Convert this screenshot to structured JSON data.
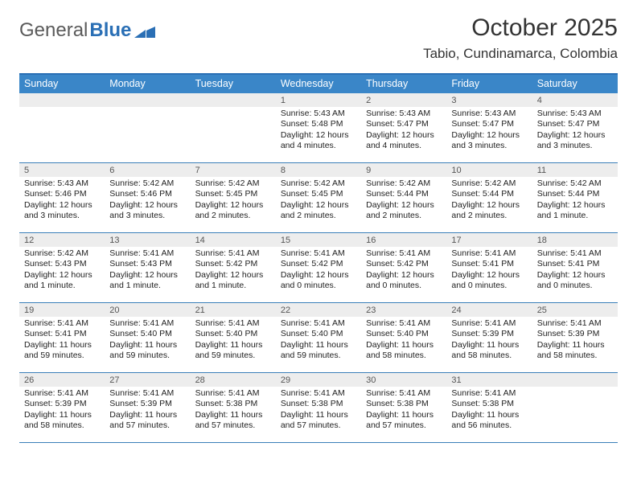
{
  "logo": {
    "word1": "General",
    "word2": "Blue"
  },
  "title": "October 2025",
  "location": "Tabio, Cundinamarca, Colombia",
  "colors": {
    "header_bg": "#3a86c8",
    "header_border": "#2a6fb5",
    "row_divider": "#3a7fb8",
    "daynum_bg": "#ededed",
    "text": "#222222",
    "logo_gray": "#5a5a5a",
    "logo_blue": "#2a6fb5"
  },
  "fonts": {
    "family": "Arial",
    "title_size_pt": 22,
    "location_size_pt": 13,
    "header_size_pt": 9.5,
    "body_size_pt": 8
  },
  "day_headers": [
    "Sunday",
    "Monday",
    "Tuesday",
    "Wednesday",
    "Thursday",
    "Friday",
    "Saturday"
  ],
  "weeks": [
    [
      {
        "n": "",
        "sunrise": "",
        "sunset": "",
        "daylight": ""
      },
      {
        "n": "",
        "sunrise": "",
        "sunset": "",
        "daylight": ""
      },
      {
        "n": "",
        "sunrise": "",
        "sunset": "",
        "daylight": ""
      },
      {
        "n": "1",
        "sunrise": "5:43 AM",
        "sunset": "5:48 PM",
        "daylight": "12 hours and 4 minutes."
      },
      {
        "n": "2",
        "sunrise": "5:43 AM",
        "sunset": "5:47 PM",
        "daylight": "12 hours and 4 minutes."
      },
      {
        "n": "3",
        "sunrise": "5:43 AM",
        "sunset": "5:47 PM",
        "daylight": "12 hours and 3 minutes."
      },
      {
        "n": "4",
        "sunrise": "5:43 AM",
        "sunset": "5:47 PM",
        "daylight": "12 hours and 3 minutes."
      }
    ],
    [
      {
        "n": "5",
        "sunrise": "5:43 AM",
        "sunset": "5:46 PM",
        "daylight": "12 hours and 3 minutes."
      },
      {
        "n": "6",
        "sunrise": "5:42 AM",
        "sunset": "5:46 PM",
        "daylight": "12 hours and 3 minutes."
      },
      {
        "n": "7",
        "sunrise": "5:42 AM",
        "sunset": "5:45 PM",
        "daylight": "12 hours and 2 minutes."
      },
      {
        "n": "8",
        "sunrise": "5:42 AM",
        "sunset": "5:45 PM",
        "daylight": "12 hours and 2 minutes."
      },
      {
        "n": "9",
        "sunrise": "5:42 AM",
        "sunset": "5:44 PM",
        "daylight": "12 hours and 2 minutes."
      },
      {
        "n": "10",
        "sunrise": "5:42 AM",
        "sunset": "5:44 PM",
        "daylight": "12 hours and 2 minutes."
      },
      {
        "n": "11",
        "sunrise": "5:42 AM",
        "sunset": "5:44 PM",
        "daylight": "12 hours and 1 minute."
      }
    ],
    [
      {
        "n": "12",
        "sunrise": "5:42 AM",
        "sunset": "5:43 PM",
        "daylight": "12 hours and 1 minute."
      },
      {
        "n": "13",
        "sunrise": "5:41 AM",
        "sunset": "5:43 PM",
        "daylight": "12 hours and 1 minute."
      },
      {
        "n": "14",
        "sunrise": "5:41 AM",
        "sunset": "5:42 PM",
        "daylight": "12 hours and 1 minute."
      },
      {
        "n": "15",
        "sunrise": "5:41 AM",
        "sunset": "5:42 PM",
        "daylight": "12 hours and 0 minutes."
      },
      {
        "n": "16",
        "sunrise": "5:41 AM",
        "sunset": "5:42 PM",
        "daylight": "12 hours and 0 minutes."
      },
      {
        "n": "17",
        "sunrise": "5:41 AM",
        "sunset": "5:41 PM",
        "daylight": "12 hours and 0 minutes."
      },
      {
        "n": "18",
        "sunrise": "5:41 AM",
        "sunset": "5:41 PM",
        "daylight": "12 hours and 0 minutes."
      }
    ],
    [
      {
        "n": "19",
        "sunrise": "5:41 AM",
        "sunset": "5:41 PM",
        "daylight": "11 hours and 59 minutes."
      },
      {
        "n": "20",
        "sunrise": "5:41 AM",
        "sunset": "5:40 PM",
        "daylight": "11 hours and 59 minutes."
      },
      {
        "n": "21",
        "sunrise": "5:41 AM",
        "sunset": "5:40 PM",
        "daylight": "11 hours and 59 minutes."
      },
      {
        "n": "22",
        "sunrise": "5:41 AM",
        "sunset": "5:40 PM",
        "daylight": "11 hours and 59 minutes."
      },
      {
        "n": "23",
        "sunrise": "5:41 AM",
        "sunset": "5:40 PM",
        "daylight": "11 hours and 58 minutes."
      },
      {
        "n": "24",
        "sunrise": "5:41 AM",
        "sunset": "5:39 PM",
        "daylight": "11 hours and 58 minutes."
      },
      {
        "n": "25",
        "sunrise": "5:41 AM",
        "sunset": "5:39 PM",
        "daylight": "11 hours and 58 minutes."
      }
    ],
    [
      {
        "n": "26",
        "sunrise": "5:41 AM",
        "sunset": "5:39 PM",
        "daylight": "11 hours and 58 minutes."
      },
      {
        "n": "27",
        "sunrise": "5:41 AM",
        "sunset": "5:39 PM",
        "daylight": "11 hours and 57 minutes."
      },
      {
        "n": "28",
        "sunrise": "5:41 AM",
        "sunset": "5:38 PM",
        "daylight": "11 hours and 57 minutes."
      },
      {
        "n": "29",
        "sunrise": "5:41 AM",
        "sunset": "5:38 PM",
        "daylight": "11 hours and 57 minutes."
      },
      {
        "n": "30",
        "sunrise": "5:41 AM",
        "sunset": "5:38 PM",
        "daylight": "11 hours and 57 minutes."
      },
      {
        "n": "31",
        "sunrise": "5:41 AM",
        "sunset": "5:38 PM",
        "daylight": "11 hours and 56 minutes."
      },
      {
        "n": "",
        "sunrise": "",
        "sunset": "",
        "daylight": ""
      }
    ]
  ],
  "labels": {
    "sunrise": "Sunrise:",
    "sunset": "Sunset:",
    "daylight": "Daylight:"
  }
}
